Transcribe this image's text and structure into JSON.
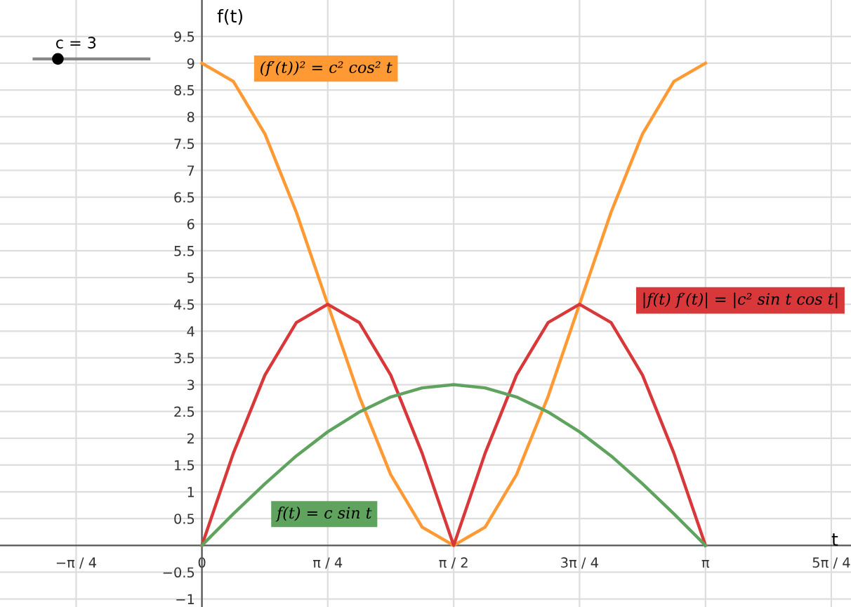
{
  "chart_data": {
    "type": "line",
    "xlabel": "t",
    "ylabel": "f(t)",
    "x": [
      0,
      0.196,
      0.393,
      0.589,
      0.785,
      0.982,
      1.178,
      1.374,
      1.571,
      1.767,
      1.963,
      2.16,
      2.356,
      2.553,
      2.749,
      2.945,
      3.142
    ],
    "series": [
      {
        "name": "(f′(t))² = c² cos² t",
        "color": "#ff9933",
        "values": [
          9,
          8.66,
          7.68,
          6.22,
          4.5,
          2.78,
          1.32,
          0.34,
          0,
          0.34,
          1.32,
          2.78,
          4.5,
          6.22,
          7.68,
          8.66,
          9
        ]
      },
      {
        "name": "|f(t) f′(t)| = |c² sin t cos t|",
        "color": "#d9383a",
        "values": [
          0,
          1.72,
          3.18,
          4.16,
          4.5,
          4.16,
          3.18,
          1.72,
          0,
          1.72,
          3.18,
          4.16,
          4.5,
          4.16,
          3.18,
          1.72,
          0
        ]
      },
      {
        "name": "f(t) = c sin t",
        "color": "#5fa35f",
        "values": [
          0,
          0.59,
          1.15,
          1.67,
          2.12,
          2.49,
          2.77,
          2.94,
          3,
          2.94,
          2.77,
          2.49,
          2.12,
          1.67,
          1.15,
          0.59,
          0
        ]
      }
    ],
    "xlim": [
      -1.26,
      4.05
    ],
    "ylim": [
      -1.15,
      10.18
    ],
    "xticks": [
      {
        "value": -0.785,
        "label": "−π / 4"
      },
      {
        "value": 0,
        "label": "0"
      },
      {
        "value": 0.785,
        "label": "π / 4"
      },
      {
        "value": 1.571,
        "label": "π / 2"
      },
      {
        "value": 2.356,
        "label": "3π / 4"
      },
      {
        "value": 3.142,
        "label": "π"
      },
      {
        "value": 3.927,
        "label": "5π / 4"
      }
    ],
    "yticks": [
      {
        "value": -1,
        "label": "−1"
      },
      {
        "value": -0.5,
        "label": "−0.5"
      },
      0.5,
      1,
      1.5,
      2,
      2.5,
      3,
      3.5,
      4,
      4.5,
      5,
      5.5,
      6,
      6.5,
      7,
      7.5,
      8,
      8.5,
      9,
      9.5
    ],
    "annotations": [
      "c = 3"
    ],
    "grid": true,
    "legend": false,
    "marker": "none",
    "line_style": "solid"
  }
}
